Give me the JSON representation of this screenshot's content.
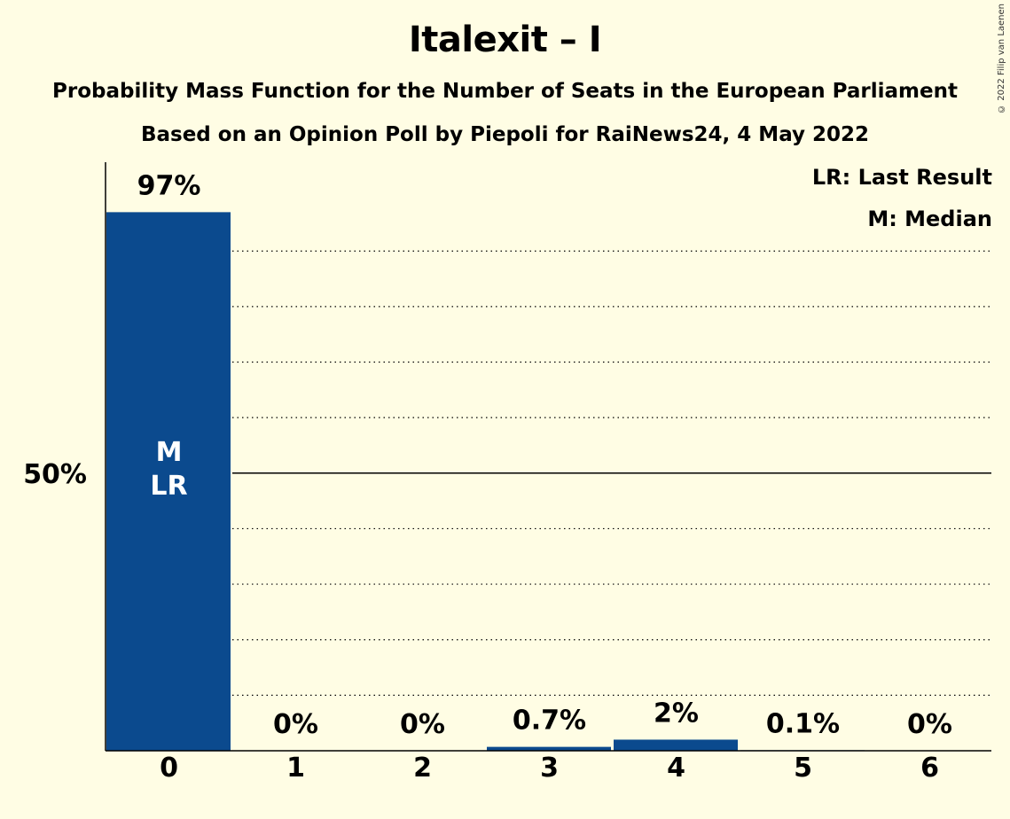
{
  "header": {
    "title": "Italexit – I",
    "subtitle_line1": "Probability Mass Function for the Number of Seats in the European Parliament",
    "subtitle_line2": "Based on an Opinion Poll by Piepoli for RaiNews24, 4 May 2022",
    "copyright": "© 2022 Filip van Laenen"
  },
  "legend": {
    "last_result": "LR: Last Result",
    "median": "M: Median"
  },
  "colors": {
    "bar": "#0b4a8e",
    "background": "#fffde4"
  },
  "chart_data": {
    "type": "bar",
    "title": "Italexit – I",
    "categories": [
      "0",
      "1",
      "2",
      "3",
      "4",
      "5",
      "6"
    ],
    "values": [
      97,
      0,
      0,
      0.7,
      2,
      0.1,
      0
    ],
    "data_labels": [
      "97%",
      "0%",
      "0%",
      "0.7%",
      "2%",
      "0.1%",
      "0%"
    ],
    "ylim": [
      0,
      106
    ],
    "yticks": [
      {
        "value": 50,
        "label": "50%"
      }
    ],
    "gridlines": [
      10,
      20,
      30,
      40,
      50,
      60,
      70,
      80,
      90
    ],
    "median_category": "0",
    "last_result_category": "0",
    "median_marker": "M",
    "last_result_marker": "LR"
  }
}
